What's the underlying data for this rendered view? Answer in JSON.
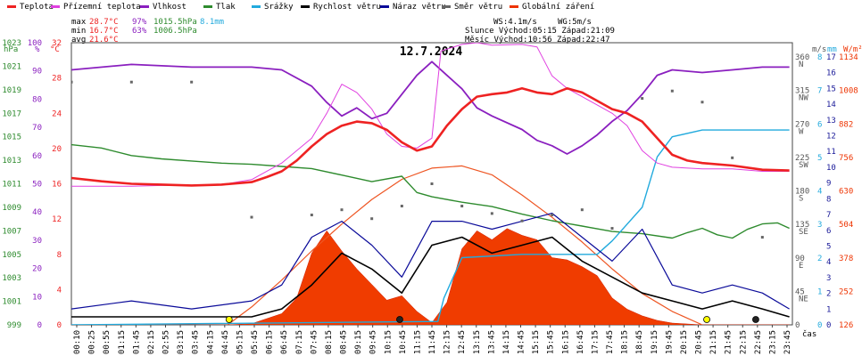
{
  "chart_data": {
    "type": "line",
    "title": "12.7.2024",
    "xlabel": "čas",
    "legend": [
      {
        "name": "Teplota",
        "color": "#ee2222"
      },
      {
        "name": "Přízemní teplota",
        "color": "#e040e0"
      },
      {
        "name": "Vlhkost",
        "color": "#8a1fbf"
      },
      {
        "name": "Tlak",
        "color": "#2e8b2e"
      },
      {
        "name": "Srážky",
        "color": "#22aadd"
      },
      {
        "name": "Rychlost větru",
        "color": "#000000"
      },
      {
        "name": "Náraz větru",
        "color": "#0a0a99"
      },
      {
        "name": "Směr větru",
        "color": "#666666"
      },
      {
        "name": "Globální záření",
        "color": "#ee3300"
      }
    ],
    "stats": {
      "max_label": "max",
      "max_temp": "28.7°C",
      "max_hum": "97%",
      "max_press": "1015.5hPa",
      "rain": "8.1mm",
      "min_label": "min",
      "min_temp": "16.7°C",
      "min_hum": "63%",
      "min_press": "1006.5hPa",
      "avg_label": "avg",
      "avg_temp": "21.6°C"
    },
    "wind_info": {
      "ws": "WS:4.1m/s",
      "wg": "WG:5m/s",
      "sun": "Slunce  Východ:05:15   Západ:21:09",
      "moon": "Měsíc  Východ:10:56   Západ:22:47"
    },
    "axes": {
      "hpa_title": "hPa",
      "pct_title": "%",
      "temp_title": "°C",
      "dir_title": "m/s",
      "ms_title": "mm",
      "rad_title": "W/m²",
      "hpa_ticks": [
        "1023",
        "1021",
        "1019",
        "1017",
        "1015",
        "1013",
        "1011",
        "1009",
        "1007",
        "1005",
        "1003",
        "1001",
        "999"
      ],
      "pct_ticks": [
        "100",
        "90",
        "80",
        "70",
        "60",
        "50",
        "40",
        "30",
        "20",
        "10",
        "0"
      ],
      "temp_ticks": [
        "32",
        "28",
        "24",
        "20",
        "16",
        "12",
        "8",
        "4",
        "0"
      ],
      "dir_ticks": [
        "360",
        "315",
        "270",
        "225",
        "180",
        "135",
        "90",
        "45",
        "0"
      ],
      "dir_names": [
        "N",
        "NW",
        "W",
        "SW",
        "S",
        "SE",
        "E",
        "NE",
        ""
      ],
      "ms_ticks": [
        "17",
        "16",
        "15",
        "14",
        "13",
        "12",
        "11",
        "10",
        "9",
        "8",
        "7",
        "6",
        "5",
        "4",
        "3",
        "2",
        "1",
        "0"
      ],
      "mm_ticks": [
        "8",
        "7",
        "6",
        "5",
        "4",
        "3",
        "2",
        "1",
        "0"
      ],
      "rad_ticks": [
        "1134",
        "1008",
        "882",
        "756",
        "630",
        "504",
        "378",
        "252",
        "126"
      ]
    },
    "x_ticks": [
      "00:10",
      "00:25",
      "00:55",
      "01:15",
      "01:45",
      "02:15",
      "02:55",
      "03:15",
      "03:45",
      "04:15",
      "04:45",
      "05:15",
      "05:45",
      "06:15",
      "06:45",
      "07:15",
      "07:45",
      "08:15",
      "08:45",
      "09:15",
      "09:45",
      "10:15",
      "10:45",
      "11:15",
      "11:45",
      "12:15",
      "12:45",
      "13:15",
      "13:45",
      "14:15",
      "14:45",
      "15:15",
      "15:45",
      "16:15",
      "16:45",
      "17:15",
      "17:45",
      "18:15",
      "18:45",
      "19:15",
      "19:45",
      "20:15",
      "20:45",
      "21:15",
      "21:45",
      "22:15",
      "22:45",
      "23:15",
      "23:45"
    ],
    "x_range_hours": [
      0,
      24
    ],
    "temp_range": [
      0,
      34
    ],
    "hum_range": [
      0,
      104
    ],
    "press_range": [
      999,
      1025
    ],
    "wind_range": [
      0,
      17.7
    ],
    "rad_range": [
      0,
      1260
    ],
    "temperature": [
      [
        0.0,
        17.7
      ],
      [
        1,
        17.3
      ],
      [
        2,
        17.0
      ],
      [
        3,
        16.9
      ],
      [
        4,
        16.8
      ],
      [
        5,
        16.9
      ],
      [
        6,
        17.2
      ],
      [
        6.5,
        17.8
      ],
      [
        7,
        18.5
      ],
      [
        7.5,
        19.8
      ],
      [
        8,
        21.5
      ],
      [
        8.5,
        23.0
      ],
      [
        9,
        24.0
      ],
      [
        9.5,
        24.5
      ],
      [
        10,
        24.3
      ],
      [
        10.5,
        23.5
      ],
      [
        11,
        22.0
      ],
      [
        11.5,
        21.0
      ],
      [
        12,
        21.5
      ],
      [
        12.5,
        24.0
      ],
      [
        13,
        26.0
      ],
      [
        13.5,
        27.5
      ],
      [
        14,
        27.8
      ],
      [
        14.5,
        28.0
      ],
      [
        15,
        28.5
      ],
      [
        15.5,
        28.0
      ],
      [
        16,
        27.8
      ],
      [
        16.5,
        28.5
      ],
      [
        17,
        28.0
      ],
      [
        17.5,
        27.0
      ],
      [
        18,
        26.0
      ],
      [
        18.5,
        25.5
      ],
      [
        19,
        24.5
      ],
      [
        19.5,
        22.5
      ],
      [
        20,
        20.5
      ],
      [
        20.5,
        19.8
      ],
      [
        21,
        19.5
      ],
      [
        22,
        19.2
      ],
      [
        23,
        18.7
      ],
      [
        23.9,
        18.6
      ]
    ],
    "ground_temp": [
      [
        0.0,
        16.7
      ],
      [
        1,
        16.7
      ],
      [
        2,
        16.7
      ],
      [
        3,
        16.8
      ],
      [
        4,
        16.8
      ],
      [
        5,
        16.9
      ],
      [
        6,
        17.5
      ],
      [
        7,
        19.5
      ],
      [
        8,
        22.5
      ],
      [
        8.5,
        25.5
      ],
      [
        9,
        29.0
      ],
      [
        9.5,
        28.0
      ],
      [
        10,
        26.0
      ],
      [
        10.5,
        23.0
      ],
      [
        11,
        21.5
      ],
      [
        11.5,
        21.3
      ],
      [
        12,
        22.5
      ],
      [
        12.3,
        33.0
      ],
      [
        13,
        33.8
      ],
      [
        13.5,
        34.0
      ],
      [
        14,
        33.7
      ],
      [
        15,
        33.8
      ],
      [
        15.5,
        33.5
      ],
      [
        16,
        30.0
      ],
      [
        16.5,
        28.5
      ],
      [
        17,
        27.5
      ],
      [
        17.5,
        26.5
      ],
      [
        18,
        25.5
      ],
      [
        18.5,
        24.0
      ],
      [
        19,
        21.0
      ],
      [
        19.5,
        19.5
      ],
      [
        20,
        19.0
      ],
      [
        21,
        18.8
      ],
      [
        22,
        18.8
      ],
      [
        23,
        18.5
      ],
      [
        23.9,
        18.5
      ]
    ],
    "humidity": [
      [
        0.0,
        94
      ],
      [
        2,
        96
      ],
      [
        4,
        95
      ],
      [
        6,
        95
      ],
      [
        7,
        94
      ],
      [
        8,
        88
      ],
      [
        8.5,
        82
      ],
      [
        9,
        77
      ],
      [
        9.5,
        80
      ],
      [
        10,
        76
      ],
      [
        10.5,
        78
      ],
      [
        11,
        85
      ],
      [
        11.5,
        92
      ],
      [
        12,
        97
      ],
      [
        12.5,
        92
      ],
      [
        13,
        87
      ],
      [
        13.5,
        80
      ],
      [
        14,
        77
      ],
      [
        15,
        72
      ],
      [
        15.5,
        68
      ],
      [
        16,
        66
      ],
      [
        16.5,
        63
      ],
      [
        17,
        66
      ],
      [
        17.5,
        70
      ],
      [
        18,
        75
      ],
      [
        18.5,
        79
      ],
      [
        19,
        85
      ],
      [
        19.5,
        92
      ],
      [
        20,
        94
      ],
      [
        21,
        93
      ],
      [
        22,
        94
      ],
      [
        23,
        95
      ],
      [
        23.9,
        95
      ]
    ],
    "pressure": [
      [
        0.0,
        1015.6
      ],
      [
        1,
        1015.3
      ],
      [
        2,
        1014.6
      ],
      [
        3,
        1014.3
      ],
      [
        4,
        1014.1
      ],
      [
        5,
        1013.9
      ],
      [
        6,
        1013.8
      ],
      [
        7,
        1013.6
      ],
      [
        8,
        1013.4
      ],
      [
        9,
        1012.8
      ],
      [
        10,
        1012.2
      ],
      [
        11,
        1012.7
      ],
      [
        11.5,
        1011.2
      ],
      [
        12,
        1010.8
      ],
      [
        13,
        1010.3
      ],
      [
        14,
        1009.9
      ],
      [
        15,
        1009.2
      ],
      [
        16,
        1008.6
      ],
      [
        17,
        1008.1
      ],
      [
        18,
        1007.6
      ],
      [
        19,
        1007.4
      ],
      [
        20,
        1007.0
      ],
      [
        20.5,
        1007.5
      ],
      [
        21,
        1007.9
      ],
      [
        21.5,
        1007.3
      ],
      [
        22,
        1007.0
      ],
      [
        22.5,
        1007.8
      ],
      [
        23,
        1008.3
      ],
      [
        23.5,
        1008.4
      ],
      [
        23.9,
        1007.9
      ]
    ],
    "rain_mm": [
      [
        0.0,
        0
      ],
      [
        12.2,
        0.1
      ],
      [
        12.4,
        0.8
      ],
      [
        13,
        2.0
      ],
      [
        15,
        2.1
      ],
      [
        17.5,
        2.1
      ],
      [
        18,
        2.5
      ],
      [
        19,
        3.5
      ],
      [
        19.5,
        5.0
      ],
      [
        20,
        5.6
      ],
      [
        21,
        5.8
      ],
      [
        23.9,
        5.8
      ]
    ],
    "wind_speed": [
      [
        0.0,
        0.5
      ],
      [
        1,
        0.5
      ],
      [
        2,
        0.5
      ],
      [
        3,
        0.5
      ],
      [
        5,
        0.5
      ],
      [
        6,
        0.5
      ],
      [
        7,
        1.0
      ],
      [
        8,
        2.5
      ],
      [
        9,
        4.5
      ],
      [
        10,
        3.5
      ],
      [
        11,
        2.0
      ],
      [
        12,
        5.0
      ],
      [
        13,
        5.5
      ],
      [
        14,
        4.5
      ],
      [
        15,
        5.0
      ],
      [
        16,
        5.5
      ],
      [
        17,
        4.0
      ],
      [
        18,
        3.0
      ],
      [
        19,
        2.0
      ],
      [
        20,
        1.5
      ],
      [
        21,
        1.0
      ],
      [
        22,
        1.5
      ],
      [
        23,
        1.0
      ],
      [
        23.9,
        0.5
      ]
    ],
    "wind_gust": [
      [
        0.0,
        1.0
      ],
      [
        2,
        1.5
      ],
      [
        4,
        1.0
      ],
      [
        6,
        1.5
      ],
      [
        7,
        2.5
      ],
      [
        8,
        5.5
      ],
      [
        9,
        6.5
      ],
      [
        10,
        5.0
      ],
      [
        11,
        3.0
      ],
      [
        12,
        6.5
      ],
      [
        13,
        6.5
      ],
      [
        14,
        6.0
      ],
      [
        15,
        6.5
      ],
      [
        16,
        7.0
      ],
      [
        17,
        5.5
      ],
      [
        18,
        4.0
      ],
      [
        19,
        6.0
      ],
      [
        20,
        2.5
      ],
      [
        21,
        2.0
      ],
      [
        22,
        2.5
      ],
      [
        23,
        2.0
      ],
      [
        23.9,
        1.0
      ]
    ],
    "wind_dir": [
      [
        0.0,
        327
      ],
      [
        2,
        327
      ],
      [
        4,
        327
      ],
      [
        6,
        145
      ],
      [
        8,
        148
      ],
      [
        9,
        155
      ],
      [
        10,
        143
      ],
      [
        11,
        160
      ],
      [
        12,
        190
      ],
      [
        13,
        160
      ],
      [
        14,
        150
      ],
      [
        15,
        140
      ],
      [
        16,
        148
      ],
      [
        17,
        155
      ],
      [
        18,
        130
      ],
      [
        19,
        305
      ],
      [
        20,
        315
      ],
      [
        21,
        300
      ],
      [
        22,
        225
      ],
      [
        23,
        118
      ]
    ],
    "radiation": [
      [
        0.0,
        0
      ],
      [
        5.2,
        0
      ],
      [
        6,
        5
      ],
      [
        7,
        50
      ],
      [
        7.5,
        120
      ],
      [
        8,
        320
      ],
      [
        8.5,
        420
      ],
      [
        9,
        330
      ],
      [
        9.5,
        250
      ],
      [
        10,
        180
      ],
      [
        10.5,
        110
      ],
      [
        11,
        130
      ],
      [
        11.5,
        60
      ],
      [
        12,
        10
      ],
      [
        12.5,
        100
      ],
      [
        13,
        340
      ],
      [
        13.5,
        420
      ],
      [
        14,
        380
      ],
      [
        14.5,
        430
      ],
      [
        15,
        400
      ],
      [
        15.5,
        380
      ],
      [
        16,
        300
      ],
      [
        16.5,
        290
      ],
      [
        17,
        260
      ],
      [
        17.5,
        220
      ],
      [
        18,
        120
      ],
      [
        18.5,
        70
      ],
      [
        19,
        40
      ],
      [
        19.5,
        20
      ],
      [
        20,
        8
      ],
      [
        21,
        0
      ],
      [
        23.9,
        0
      ]
    ],
    "radiation_clear_sky": [
      [
        5.2,
        0
      ],
      [
        6,
        80
      ],
      [
        7,
        200
      ],
      [
        8,
        330
      ],
      [
        9,
        450
      ],
      [
        10,
        560
      ],
      [
        11,
        650
      ],
      [
        12,
        700
      ],
      [
        13,
        710
      ],
      [
        14,
        670
      ],
      [
        15,
        580
      ],
      [
        16,
        480
      ],
      [
        17,
        370
      ],
      [
        18,
        250
      ],
      [
        19,
        140
      ],
      [
        20,
        60
      ],
      [
        21,
        0
      ]
    ],
    "sun_markers": {
      "sunrise": 5.25,
      "sunset": 21.15,
      "moonrise": 10.93,
      "moonset": 22.78
    }
  }
}
